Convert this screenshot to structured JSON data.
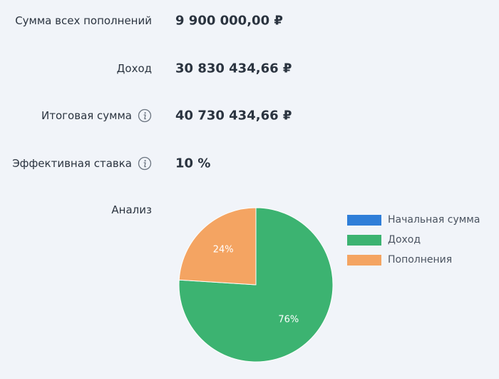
{
  "summary": [
    {
      "key": "total_topups",
      "label": "Сумма всех пополнений",
      "value": "9 900 000,00 ₽",
      "info": false
    },
    {
      "key": "income",
      "label": "Доход",
      "value": "30 830 434,66 ₽",
      "info": false
    },
    {
      "key": "final_sum",
      "label": "Итоговая сумма",
      "value": "40 730 434,66 ₽",
      "info": true
    },
    {
      "key": "effective_rate",
      "label": "Эффективная ставка",
      "value": "10 %",
      "info": true
    }
  ],
  "analysis": {
    "label": "Анализ"
  },
  "chart_data": {
    "type": "pie",
    "slices": [
      {
        "name": "Начальная сумма",
        "value": 0,
        "label": "",
        "color": "#2f7ed8"
      },
      {
        "name": "Доход",
        "value": 76,
        "label": "76%",
        "color": "#3cb371"
      },
      {
        "name": "Пополнения",
        "value": 24,
        "label": "24%",
        "color": "#f4a462"
      }
    ],
    "legend": {
      "placement": "right",
      "items": [
        "Начальная сумма",
        "Доход",
        "Пополнения"
      ]
    }
  }
}
